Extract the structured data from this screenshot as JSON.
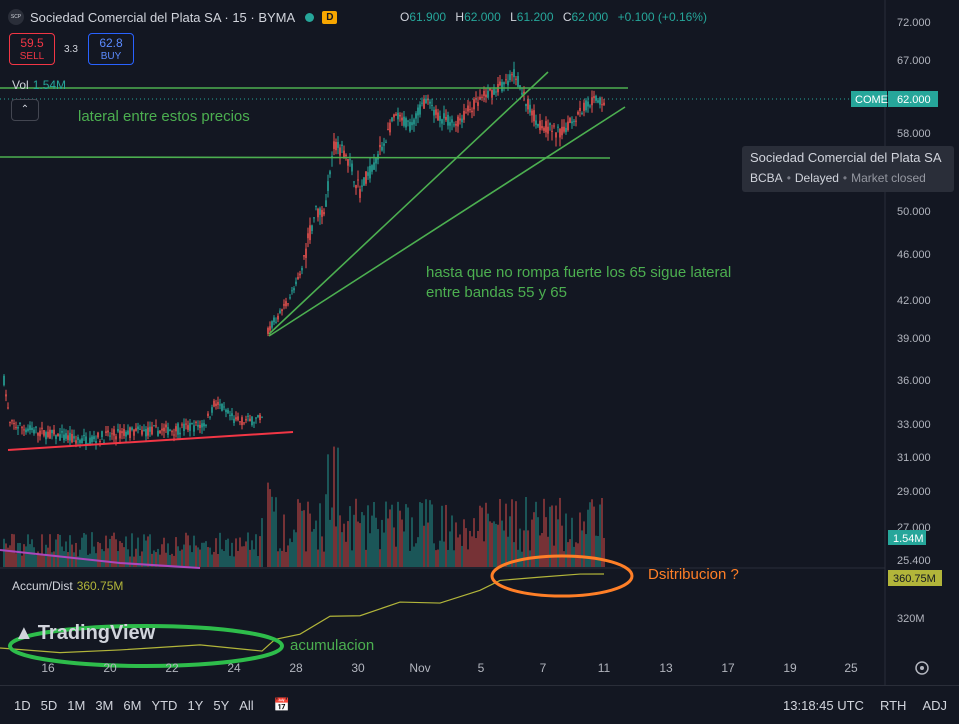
{
  "header": {
    "logo_text": "SCP",
    "title": "Sociedad Comercial del Plata SA · 15 · BYMA",
    "badge": "D",
    "ohlc": [
      {
        "k": "O",
        "v": "61.900"
      },
      {
        "k": "H",
        "v": "62.000"
      },
      {
        "k": "L",
        "v": "61.200"
      },
      {
        "k": "C",
        "v": "62.000"
      }
    ],
    "change": "+0.100 (+0.16%)"
  },
  "trade": {
    "sell_price": "59.5",
    "sell_label": "SELL",
    "spread": "3.3",
    "buy_price": "62.8",
    "buy_label": "BUY"
  },
  "volume": {
    "label": "Vol",
    "value": "1.54M"
  },
  "tooltip": {
    "name": "Sociedad Comercial del Plata SA",
    "exchange": "BCBA",
    "status": "Delayed",
    "market": "Market closed"
  },
  "indicator": {
    "label": "Accum/Dist",
    "value": "360.75M"
  },
  "axis": {
    "price_ticks": [
      "72.000",
      "67.000",
      "58.000",
      "54.000",
      "50.000",
      "46.000",
      "42.000",
      "39.000",
      "36.000",
      "33.000",
      "31.000",
      "29.000",
      "27.000",
      "25.400"
    ],
    "price_badge_symbol": "COME",
    "price_badge_value": "62.000",
    "vol_badge": "1.54M",
    "ad_badge": "360.75M",
    "ad_tick": "320M",
    "time_ticks": [
      "16",
      "20",
      "22",
      "24",
      "28",
      "30",
      "Nov",
      "5",
      "7",
      "11",
      "13",
      "17",
      "19",
      "25"
    ]
  },
  "annotations": {
    "lateral": "lateral entre estos precios",
    "hasta_line1": "hasta que no rompa fuerte los 65 sigue lateral",
    "hasta_line2": "entre bandas 55 y 65",
    "distribucion": "Dsitribucion ?",
    "acumulacion": "acumulacion"
  },
  "watermark": "TradingView",
  "bottom_bar": {
    "ranges": [
      "1D",
      "5D",
      "1M",
      "3M",
      "6M",
      "YTD",
      "1Y",
      "5Y",
      "All"
    ],
    "time": "13:18:45 UTC",
    "rth": "RTH",
    "adj": "ADJ"
  },
  "colors": {
    "up": "#26a69a",
    "down": "#ef5350",
    "bg": "#131722",
    "annotation": "#4caf50",
    "ad_line": "#b2b53a",
    "orange": "#ff7f27"
  },
  "chart_data": {
    "type": "candlestick",
    "price_range": [
      25.4,
      72.0
    ],
    "segments_close": [
      {
        "from": "16",
        "to": "25",
        "close_range": [
          31.5,
          35.0
        ]
      },
      {
        "from": "28",
        "to": "30",
        "close_range": [
          39.0,
          59.0
        ]
      },
      {
        "from": "30",
        "to": "Nov",
        "close_range": [
          54.0,
          63.0
        ]
      },
      {
        "from": "Nov",
        "to": "11",
        "close_range": [
          55.0,
          65.5
        ]
      }
    ],
    "last_price": 62.0,
    "last_volume": "1.54M",
    "accum_dist_last": "360.75M"
  }
}
